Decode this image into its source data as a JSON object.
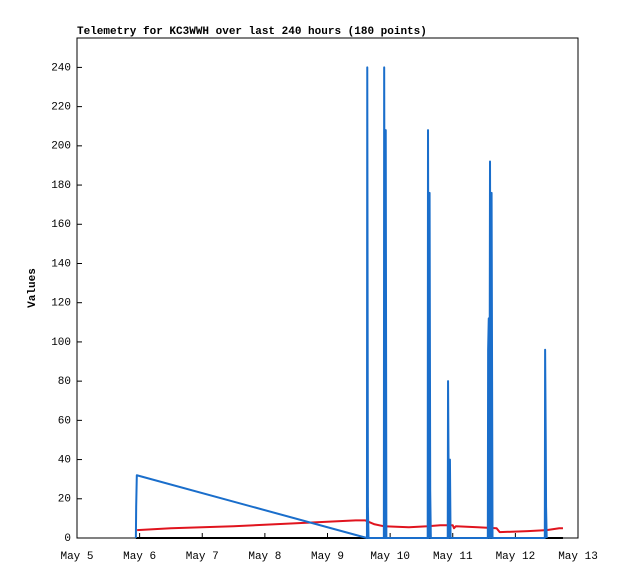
{
  "chart_data": {
    "type": "line",
    "title": "Telemetry for KC3WWH over last 240 hours (180 points)",
    "ylabel": "Values",
    "xlim": [
      5,
      13
    ],
    "xticks": [
      {
        "value": 5,
        "label": "May 5"
      },
      {
        "value": 6,
        "label": "May 6"
      },
      {
        "value": 7,
        "label": "May 7"
      },
      {
        "value": 8,
        "label": "May 8"
      },
      {
        "value": 9,
        "label": "May 9"
      },
      {
        "value": 10,
        "label": "May 10"
      },
      {
        "value": 11,
        "label": "May 11"
      },
      {
        "value": 12,
        "label": "May 12"
      },
      {
        "value": 13,
        "label": "May 13"
      }
    ],
    "ylim": [
      0,
      255
    ],
    "yticks": [
      0,
      20,
      40,
      60,
      80,
      100,
      120,
      140,
      160,
      180,
      200,
      220,
      240
    ],
    "series": [
      {
        "color": "#000000",
        "x": [
          5.94,
          12.76
        ],
        "values": [
          0,
          0
        ]
      },
      {
        "color": "#e0141e",
        "x": [
          5.96,
          6.5,
          7.5,
          8.5,
          9.45,
          9.6,
          9.75,
          9.9,
          10.3,
          10.6,
          10.8,
          11.0,
          11.02,
          11.05,
          11.4,
          11.7,
          11.75,
          12.2,
          12.5,
          12.7,
          12.76
        ],
        "values": [
          4,
          5,
          6,
          7.5,
          9,
          9,
          7,
          6,
          5.5,
          6,
          6.5,
          6.5,
          5,
          6,
          5.5,
          5,
          3,
          3.5,
          4,
          5,
          5
        ]
      },
      {
        "color": "#1a6ecb",
        "x": [
          5.94,
          5.945,
          5.955,
          9.63,
          9.635,
          9.645,
          9.655,
          9.9,
          9.905,
          9.92,
          9.93,
          9.94,
          10.6,
          10.605,
          10.62,
          10.63,
          10.64,
          10.65,
          10.92,
          10.925,
          10.94,
          10.955,
          10.965,
          11.56,
          11.565,
          11.575,
          11.585,
          11.595,
          11.61,
          11.62,
          11.635,
          12.47,
          12.475,
          12.485,
          12.49,
          12.5
        ],
        "values": [
          0,
          16,
          32,
          0,
          240,
          16,
          0,
          0,
          240,
          0,
          208,
          0,
          0,
          208,
          0,
          176,
          24,
          0,
          0,
          80,
          0,
          40,
          0,
          0,
          96,
          112,
          0,
          192,
          0,
          176,
          0,
          0,
          96,
          48,
          16,
          0
        ]
      }
    ]
  }
}
